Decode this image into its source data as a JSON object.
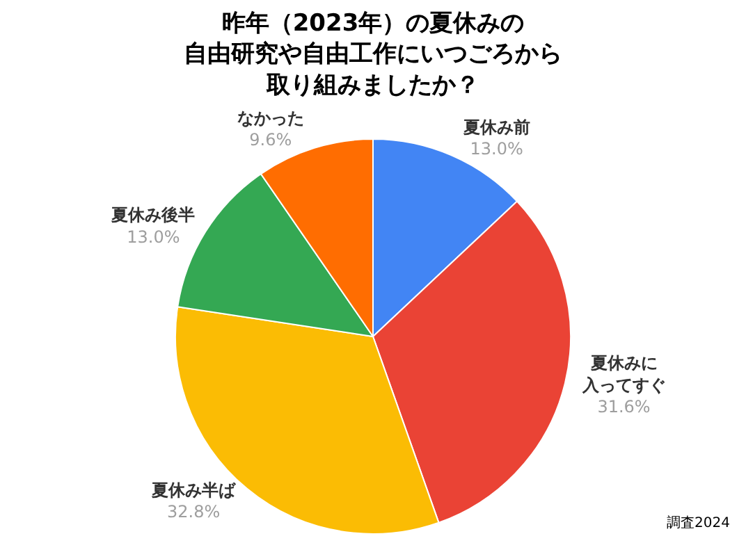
{
  "chart_data": {
    "type": "pie",
    "title": "昨年（2023年）の夏休みの自由研究や自由工作にいつごろから取り組みましたか？",
    "categories": [
      "夏休み前",
      "夏休みに入ってすぐ",
      "夏休み半ば",
      "夏休み後半",
      "なかった"
    ],
    "values": [
      13.0,
      31.6,
      32.8,
      13.0,
      9.6
    ],
    "value_labels": [
      "13.0%",
      "31.6%",
      "32.8%",
      "13.0%",
      "9.6%"
    ],
    "colors": [
      "#4285f4",
      "#ea4335",
      "#fbbc04",
      "#34a853",
      "#ff6d01"
    ],
    "annotations": [
      "調査2024"
    ],
    "legend": false
  }
}
